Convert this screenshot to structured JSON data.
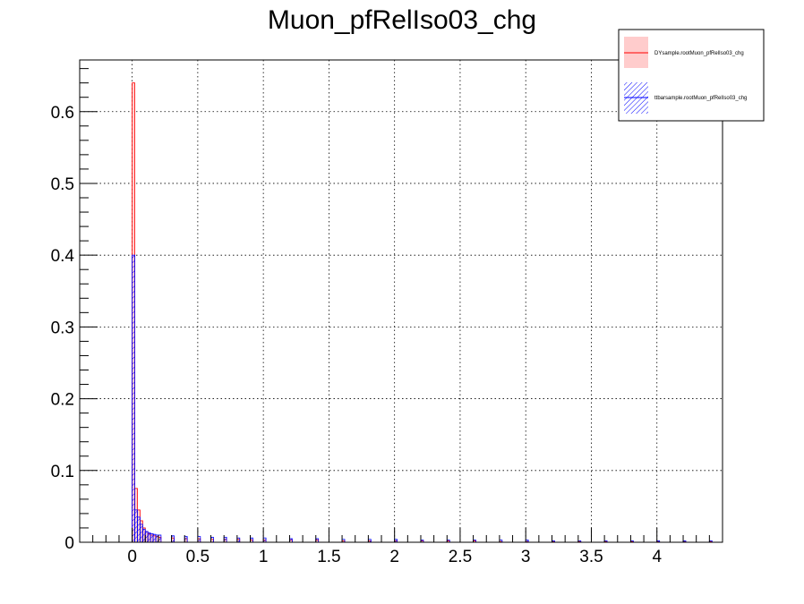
{
  "chart_data": {
    "type": "bar",
    "title": "Muon_pfRelIso03_chg",
    "xlabel": "",
    "ylabel": "",
    "xlim": [
      -0.4,
      4.5
    ],
    "ylim": [
      0,
      0.672
    ],
    "grid": true,
    "legend_position": "top-right",
    "x_ticks": [
      {
        "value": 0,
        "label": "0"
      },
      {
        "value": 0.5,
        "label": "0.5"
      },
      {
        "value": 1,
        "label": "1"
      },
      {
        "value": 1.5,
        "label": "1.5"
      },
      {
        "value": 2,
        "label": "2"
      },
      {
        "value": 2.5,
        "label": "2.5"
      },
      {
        "value": 3,
        "label": "3"
      },
      {
        "value": 3.5,
        "label": "3.5"
      },
      {
        "value": 4,
        "label": "4"
      }
    ],
    "y_ticks": [
      {
        "value": 0,
        "label": "0"
      },
      {
        "value": 0.1,
        "label": "0.1"
      },
      {
        "value": 0.2,
        "label": "0.2"
      },
      {
        "value": 0.3,
        "label": "0.3"
      },
      {
        "value": 0.4,
        "label": "0.4"
      },
      {
        "value": 0.5,
        "label": "0.5"
      },
      {
        "value": 0.6,
        "label": "0.6"
      }
    ],
    "bin_width": 0.02,
    "series": [
      {
        "name": "DYsample.rootMuon_pfRelIso03_chg",
        "color": "#ff0000",
        "fill": "#ffcccc",
        "style": "solid-fill",
        "x": [
          0,
          0.02,
          0.04,
          0.06,
          0.08,
          0.1,
          0.12,
          0.14,
          0.16,
          0.18,
          0.2,
          0.3,
          0.4,
          0.5,
          0.6,
          0.7,
          0.8,
          0.9,
          1.0,
          1.2,
          1.4,
          1.6,
          1.8,
          2.0,
          2.2,
          2.4,
          2.6,
          2.8,
          3.0,
          3.2,
          3.4,
          3.6,
          3.8,
          4.0,
          4.2,
          4.4
        ],
        "values": [
          0.64,
          0.075,
          0.045,
          0.03,
          0.02,
          0.015,
          0.012,
          0.01,
          0.009,
          0.008,
          0.007,
          0.006,
          0.005,
          0.005,
          0.004,
          0.004,
          0.004,
          0.003,
          0.003,
          0.003,
          0.003,
          0.002,
          0.002,
          0.002,
          0.002,
          0.002,
          0.002,
          0.001,
          0.001,
          0.001,
          0.001,
          0.001,
          0.001,
          0.001,
          0.001,
          0.001
        ]
      },
      {
        "name": "ttbarsample.rootMuon_pfRelIso03_chg",
        "color": "#0000ff",
        "fill": "#0000ff",
        "style": "hatched",
        "x": [
          0,
          0.02,
          0.04,
          0.06,
          0.08,
          0.1,
          0.12,
          0.14,
          0.16,
          0.18,
          0.2,
          0.3,
          0.4,
          0.5,
          0.6,
          0.7,
          0.8,
          0.9,
          1.0,
          1.2,
          1.4,
          1.6,
          1.8,
          2.0,
          2.2,
          2.4,
          2.6,
          2.8,
          3.0,
          3.2,
          3.4,
          3.6,
          3.8,
          4.0,
          4.2,
          4.4
        ],
        "values": [
          0.4,
          0.045,
          0.035,
          0.025,
          0.018,
          0.015,
          0.013,
          0.012,
          0.011,
          0.01,
          0.01,
          0.009,
          0.008,
          0.008,
          0.007,
          0.007,
          0.006,
          0.006,
          0.006,
          0.005,
          0.005,
          0.004,
          0.004,
          0.004,
          0.003,
          0.003,
          0.003,
          0.003,
          0.003,
          0.002,
          0.002,
          0.002,
          0.002,
          0.002,
          0.002,
          0.002
        ]
      }
    ]
  }
}
